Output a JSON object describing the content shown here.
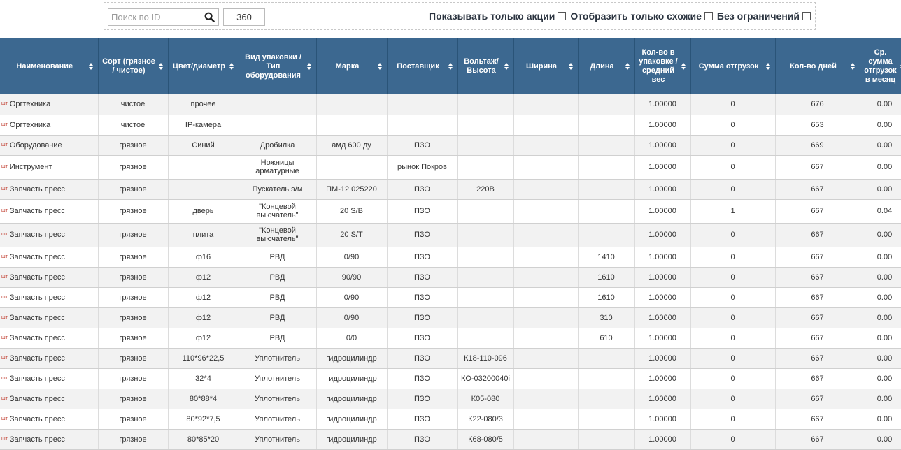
{
  "toolbar": {
    "search_placeholder": "Поиск по ID",
    "days_value": "360",
    "filters": [
      {
        "label": "Показывать только акции",
        "checked": false
      },
      {
        "label": "Отобразить только схожие",
        "checked": false
      },
      {
        "label": "Без ограничений",
        "checked": false
      }
    ]
  },
  "columns": [
    "Наименование",
    "Сорт (грязное / чистое)",
    "Цвет/диаметр",
    "Вид упаковки / Тип оборудования",
    "Марка",
    "Поставщик",
    "Вольтаж/Высота",
    "Ширина",
    "Длина",
    "Кол-во в упаковке / средний вес",
    "Сумма отгрузок",
    "Кол-во дней",
    "Ср. сумма отгрузок в месяц"
  ],
  "unit_label": "шт",
  "rows": [
    [
      "Оргтехника",
      "чистое",
      "прочее",
      "",
      "",
      "",
      "",
      "",
      "",
      "1.00000",
      "0",
      "676",
      "0.00"
    ],
    [
      "Оргтехника",
      "чистое",
      "IP-камера",
      "",
      "",
      "",
      "",
      "",
      "",
      "1.00000",
      "0",
      "653",
      "0.00"
    ],
    [
      "Оборудование",
      "грязное",
      "Синий",
      "Дробилка",
      "амд 600 ду",
      "ПЗО",
      "",
      "",
      "",
      "1.00000",
      "0",
      "669",
      "0.00"
    ],
    [
      "Инструмент",
      "грязное",
      "",
      "Ножницы арматурные",
      "",
      "рынок Покров",
      "",
      "",
      "",
      "1.00000",
      "0",
      "667",
      "0.00"
    ],
    [
      "Запчасть пресс",
      "грязное",
      "",
      "Пускатель э/м",
      "ПМ-12 025220",
      "ПЗО",
      "220В",
      "",
      "",
      "1.00000",
      "0",
      "667",
      "0.00"
    ],
    [
      "Запчасть пресс",
      "грязное",
      "дверь",
      "\"Концевой выючатель\"",
      "20 S/B",
      "ПЗО",
      "",
      "",
      "",
      "1.00000",
      "1",
      "667",
      "0.04"
    ],
    [
      "Запчасть пресс",
      "грязное",
      "плита",
      "\"Концевой выючатель\"",
      "20 S/T",
      "ПЗО",
      "",
      "",
      "",
      "1.00000",
      "0",
      "667",
      "0.00"
    ],
    [
      "Запчасть пресс",
      "грязное",
      "ф16",
      "РВД",
      "0/90",
      "ПЗО",
      "",
      "",
      "1410",
      "1.00000",
      "0",
      "667",
      "0.00"
    ],
    [
      "Запчасть пресс",
      "грязное",
      "ф12",
      "РВД",
      "90/90",
      "ПЗО",
      "",
      "",
      "1610",
      "1.00000",
      "0",
      "667",
      "0.00"
    ],
    [
      "Запчасть пресс",
      "грязное",
      "ф12",
      "РВД",
      "0/90",
      "ПЗО",
      "",
      "",
      "1610",
      "1.00000",
      "0",
      "667",
      "0.00"
    ],
    [
      "Запчасть пресс",
      "грязное",
      "ф12",
      "РВД",
      "0/90",
      "ПЗО",
      "",
      "",
      "310",
      "1.00000",
      "0",
      "667",
      "0.00"
    ],
    [
      "Запчасть пресс",
      "грязное",
      "ф12",
      "РВД",
      "0/0",
      "ПЗО",
      "",
      "",
      "610",
      "1.00000",
      "0",
      "667",
      "0.00"
    ],
    [
      "Запчасть пресс",
      "грязное",
      "110*96*22,5",
      "Уплотнитель",
      "гидроцилиндр",
      "ПЗО",
      "К18-110-096",
      "",
      "",
      "1.00000",
      "0",
      "667",
      "0.00"
    ],
    [
      "Запчасть пресс",
      "грязное",
      "32*4",
      "Уплотнитель",
      "гидроцилиндр",
      "ПЗО",
      "КО-03200040i",
      "",
      "",
      "1.00000",
      "0",
      "667",
      "0.00"
    ],
    [
      "Запчасть пресс",
      "грязное",
      "80*88*4",
      "Уплотнитель",
      "гидроцилиндр",
      "ПЗО",
      "К05-080",
      "",
      "",
      "1.00000",
      "0",
      "667",
      "0.00"
    ],
    [
      "Запчасть пресс",
      "грязное",
      "80*92*7,5",
      "Уплотнитель",
      "гидроцилиндр",
      "ПЗО",
      "К22-080/3",
      "",
      "",
      "1.00000",
      "0",
      "667",
      "0.00"
    ],
    [
      "Запчасть пресс",
      "грязное",
      "80*85*20",
      "Уплотнитель",
      "гидроцилиндр",
      "ПЗО",
      "К68-080/5",
      "",
      "",
      "1.00000",
      "0",
      "667",
      "0.00"
    ]
  ]
}
